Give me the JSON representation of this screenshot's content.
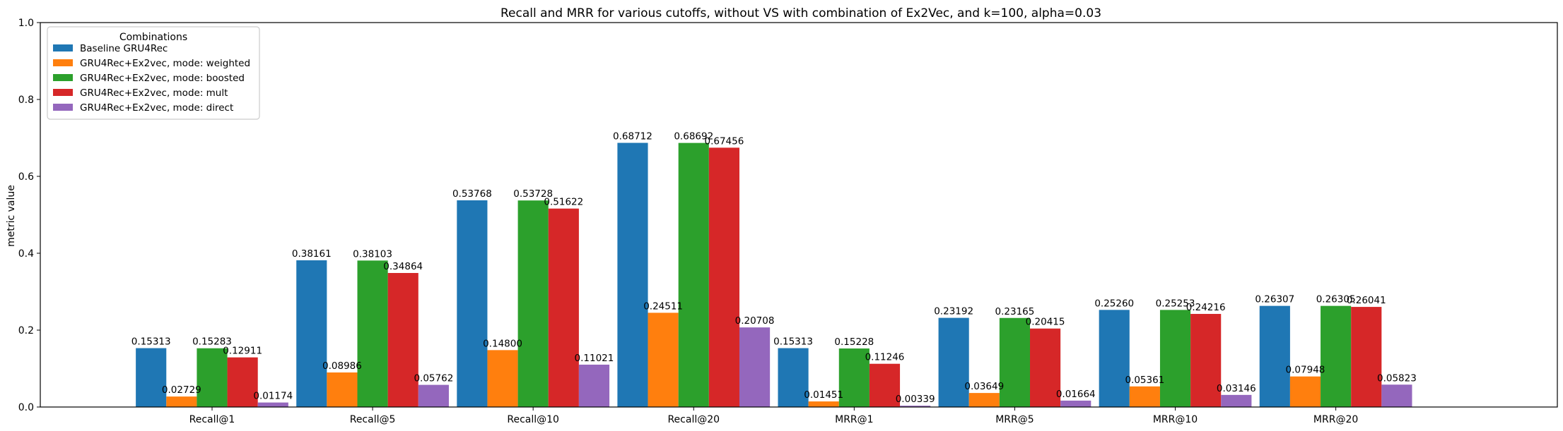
{
  "chart_data": {
    "type": "bar",
    "title": "Recall and MRR for various cutoffs, without VS with combination of Ex2Vec, and k=100, alpha=0.03",
    "xlabel": "",
    "ylabel": "metric value",
    "ylim": [
      0,
      1.0
    ],
    "yticks": [
      "0.0",
      "0.2",
      "0.4",
      "0.6",
      "0.8",
      "1.0"
    ],
    "grid": false,
    "legend_position": "top-left",
    "legend_title": "Combinations",
    "categories": [
      "Recall@1",
      "Recall@5",
      "Recall@10",
      "Recall@20",
      "MRR@1",
      "MRR@5",
      "MRR@10",
      "MRR@20"
    ],
    "series": [
      {
        "name": "Baseline GRU4Rec",
        "color": "#1f77b4",
        "values": [
          0.15313,
          0.38161,
          0.53768,
          0.68712,
          0.15313,
          0.23192,
          0.2526,
          0.26307
        ],
        "labels": [
          "0.15313",
          "0.38161",
          "0.53768",
          "0.68712",
          "0.15313",
          "0.23192",
          "0.25260",
          "0.26307"
        ]
      },
      {
        "name": "GRU4Rec+Ex2vec, mode: weighted",
        "color": "#ff7f0e",
        "values": [
          0.02729,
          0.08986,
          0.148,
          0.24511,
          0.01451,
          0.03649,
          0.05361,
          0.07948
        ],
        "labels": [
          "0.02729",
          "0.08986",
          "0.14800",
          "0.24511",
          "0.01451",
          "0.03649",
          "0.05361",
          "0.07948"
        ]
      },
      {
        "name": "GRU4Rec+Ex2vec, mode: boosted",
        "color": "#2ca02c",
        "values": [
          0.15283,
          0.38103,
          0.53728,
          0.68692,
          0.15228,
          0.23165,
          0.25253,
          0.26305
        ],
        "labels": [
          "0.15283",
          "0.38103",
          "0.53728",
          "0.68692",
          "0.15228",
          "0.23165",
          "0.25253",
          "0.26305"
        ]
      },
      {
        "name": "GRU4Rec+Ex2vec, mode: mult",
        "color": "#d62728",
        "values": [
          0.12911,
          0.34864,
          0.51622,
          0.67456,
          0.11246,
          0.20415,
          0.24216,
          0.26041
        ],
        "labels": [
          "0.12911",
          "0.34864",
          "0.51622",
          "0.67456",
          "0.11246",
          "0.20415",
          "0.24216",
          "0.26041"
        ]
      },
      {
        "name": "GRU4Rec+Ex2vec, mode: direct",
        "color": "#9467bd",
        "values": [
          0.01174,
          0.05762,
          0.11021,
          0.20708,
          0.00339,
          0.01664,
          0.03146,
          0.05823
        ],
        "labels": [
          "0.01174",
          "0.05762",
          "0.11021",
          "0.20708",
          "0.00339",
          "0.01664",
          "0.03146",
          "0.05823"
        ]
      }
    ]
  }
}
